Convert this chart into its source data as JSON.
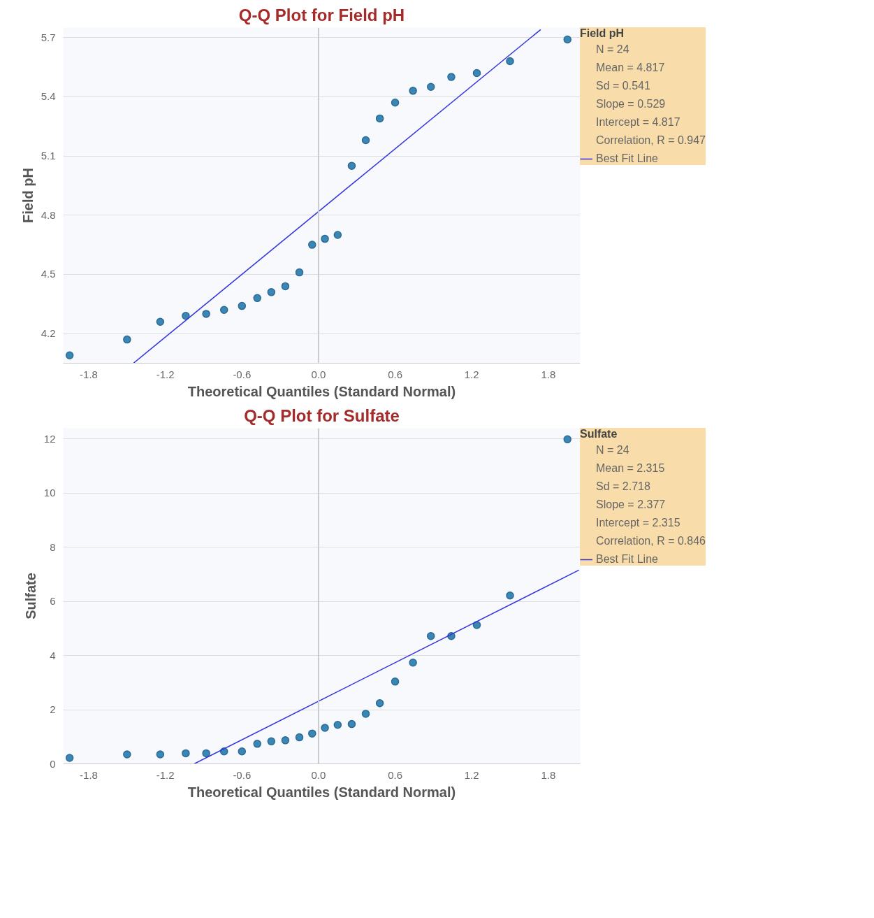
{
  "chart_data": [
    {
      "type": "scatter",
      "title": "Q-Q Plot for Field pH",
      "xlabel": "Theoretical Quantiles (Standard Normal)",
      "ylabel": "Field pH",
      "annotations": [
        "Field pH",
        "N = 24",
        "Mean = 4.817",
        "Sd = 0.541",
        "Slope = 0.529",
        "Intercept = 4.817",
        "Correlation, R = 0.947"
      ],
      "x": [
        -1.95,
        -1.5,
        -1.24,
        -1.04,
        -0.88,
        -0.74,
        -0.6,
        -0.48,
        -0.37,
        -0.26,
        -0.15,
        -0.05,
        0.05,
        0.15,
        0.26,
        0.37,
        0.48,
        0.6,
        0.74,
        0.88,
        1.04,
        1.24,
        1.5,
        1.95
      ],
      "series": [
        {
          "color": "#3a87b5",
          "marker": "circle",
          "values": [
            4.09,
            4.17,
            4.26,
            4.29,
            4.3,
            4.32,
            4.34,
            4.38,
            4.41,
            4.44,
            4.51,
            4.65,
            4.68,
            4.7,
            5.05,
            5.18,
            5.29,
            5.37,
            5.43,
            5.45,
            5.5,
            5.52,
            5.58,
            5.69
          ]
        },
        {
          "type": "line",
          "name": "Best Fit Line",
          "color": "#3333dd",
          "x": [
            -1.45,
            1.74
          ],
          "values": [
            4.05,
            5.74
          ]
        }
      ],
      "xlim": [
        -2.0,
        2.05
      ],
      "ylim": [
        4.05,
        5.75
      ],
      "xticks": [
        -1.8,
        -1.2,
        -0.6,
        {
          "value": 0,
          "label": "0.0"
        },
        0.6,
        1.2,
        1.8
      ],
      "yticks": [
        4.2,
        4.5,
        4.8,
        5.1,
        5.4,
        5.7
      ],
      "ref_lines": [
        {
          "axis": "x",
          "value": 0,
          "color": "#cccccc"
        }
      ],
      "grid": "y",
      "legend": "right"
    },
    {
      "type": "scatter",
      "title": "Q-Q Plot for Sulfate",
      "xlabel": "Theoretical Quantiles (Standard Normal)",
      "ylabel": "Sulfate",
      "annotations": [
        "Sulfate",
        "N = 24",
        "Mean = 2.315",
        "Sd = 2.718",
        "Slope = 2.377",
        "Intercept = 2.315",
        "Correlation, R = 0.846"
      ],
      "x": [
        -1.95,
        -1.5,
        -1.24,
        -1.04,
        -0.88,
        -0.74,
        -0.6,
        -0.48,
        -0.37,
        -0.26,
        -0.15,
        -0.05,
        0.05,
        0.15,
        0.26,
        0.37,
        0.48,
        0.6,
        0.74,
        0.88,
        1.04,
        1.24,
        1.5,
        1.95
      ],
      "series": [
        {
          "color": "#3a87b5",
          "marker": "circle",
          "values": [
            0.22,
            0.35,
            0.35,
            0.39,
            0.39,
            0.46,
            0.46,
            0.74,
            0.83,
            0.87,
            0.98,
            1.12,
            1.33,
            1.44,
            1.47,
            1.85,
            2.24,
            3.04,
            3.74,
            4.72,
            4.72,
            5.13,
            6.22,
            11.99
          ]
        },
        {
          "type": "line",
          "name": "Best Fit Line",
          "color": "#3333dd",
          "x": [
            -0.974,
            2.04
          ],
          "values": [
            0.0,
            7.16
          ]
        }
      ],
      "xlim": [
        -2.0,
        2.05
      ],
      "ylim": [
        0,
        12.4
      ],
      "xticks": [
        -1.8,
        -1.2,
        -0.6,
        {
          "value": 0,
          "label": "0.0"
        },
        0.6,
        1.2,
        1.8
      ],
      "yticks": [
        0,
        2,
        4,
        6,
        8,
        10,
        12
      ],
      "ref_lines": [
        {
          "axis": "x",
          "value": 0,
          "color": "#cccccc"
        }
      ],
      "grid": "y",
      "legend": "right"
    }
  ]
}
